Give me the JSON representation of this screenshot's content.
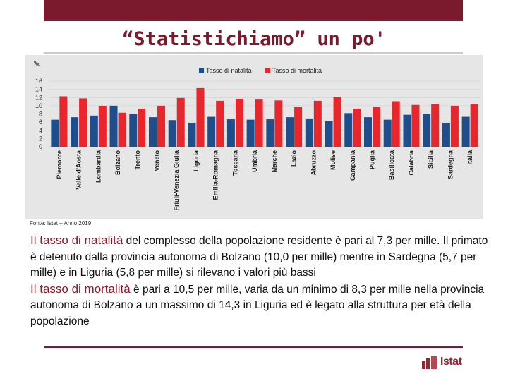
{
  "slide": {
    "title": "“Statistichiamo” un po'",
    "source": "Fonte: Istat – Anno 2019"
  },
  "paragraph1": {
    "lead": "Il tasso di natalità",
    "rest": " del complesso della popolazione residente è pari al 7,3 per mille. Il primato è detenuto dalla provincia autonoma di Bolzano (10,0 per mille) mentre in Sardegna (5,7 per mille) e in Liguria (5,8 per mille) si rilevano i valori più bassi"
  },
  "paragraph2": {
    "lead": "Il tasso di mortalità",
    "rest": " è pari a 10,5 per mille, varia da un minimo di 8,3 per mille nella provincia autonoma di Bolzano a un massimo di 14,3 in Liguria ed è legato alla struttura per età della popolazione"
  },
  "logo": {
    "text": "Istat"
  },
  "colors": {
    "natalita": "#1f4e8c",
    "mortalita": "#e8262b",
    "accent": "#7b1a2c"
  },
  "chart_data": {
    "type": "bar",
    "unit_label": "‰",
    "ylim": [
      0,
      16
    ],
    "yticks": [
      0,
      2,
      4,
      6,
      8,
      10,
      12,
      14,
      16
    ],
    "categories": [
      "Piemonte",
      "Valle d'Aosta",
      "Lombardia",
      "Bolzano",
      "Trento",
      "Veneto",
      "Friuli-Venezia Giulia",
      "Liguria",
      "Emilia-Romagna",
      "Toscana",
      "Umbria",
      "Marche",
      "Lazio",
      "Abruzzo",
      "Molise",
      "Campania",
      "Puglia",
      "Basilicata",
      "Calabria",
      "Sicilia",
      "Sardegna",
      "Italia"
    ],
    "series": [
      {
        "name": "Tasso di natalità",
        "values": [
          6.6,
          7.2,
          7.6,
          10.0,
          8.0,
          7.2,
          6.5,
          5.8,
          7.3,
          6.7,
          6.6,
          6.7,
          7.2,
          6.9,
          6.2,
          8.2,
          7.2,
          6.6,
          7.8,
          8.0,
          5.7,
          7.3
        ]
      },
      {
        "name": "Tasso di mortalità",
        "values": [
          12.3,
          11.8,
          10.0,
          8.3,
          9.3,
          10.0,
          11.9,
          14.3,
          11.2,
          11.7,
          11.5,
          11.3,
          9.8,
          11.2,
          12.1,
          9.3,
          9.7,
          11.1,
          10.2,
          10.4,
          10.0,
          10.5
        ]
      }
    ]
  }
}
